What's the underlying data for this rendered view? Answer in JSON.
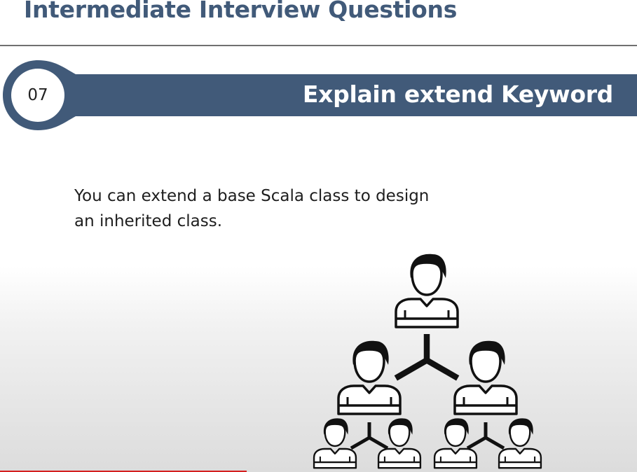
{
  "header": {
    "title": "Intermediate Interview Questions"
  },
  "question": {
    "number": "07",
    "title": "Explain extend Keyword"
  },
  "content": {
    "lines": [
      "You can extend a base Scala class to design",
      "an inherited class."
    ]
  },
  "illustration": {
    "icon": "people-hierarchy-icon",
    "color": "#111111"
  },
  "colors": {
    "banner": "#415a79",
    "title": "#415a79",
    "progress": "#d42020"
  }
}
